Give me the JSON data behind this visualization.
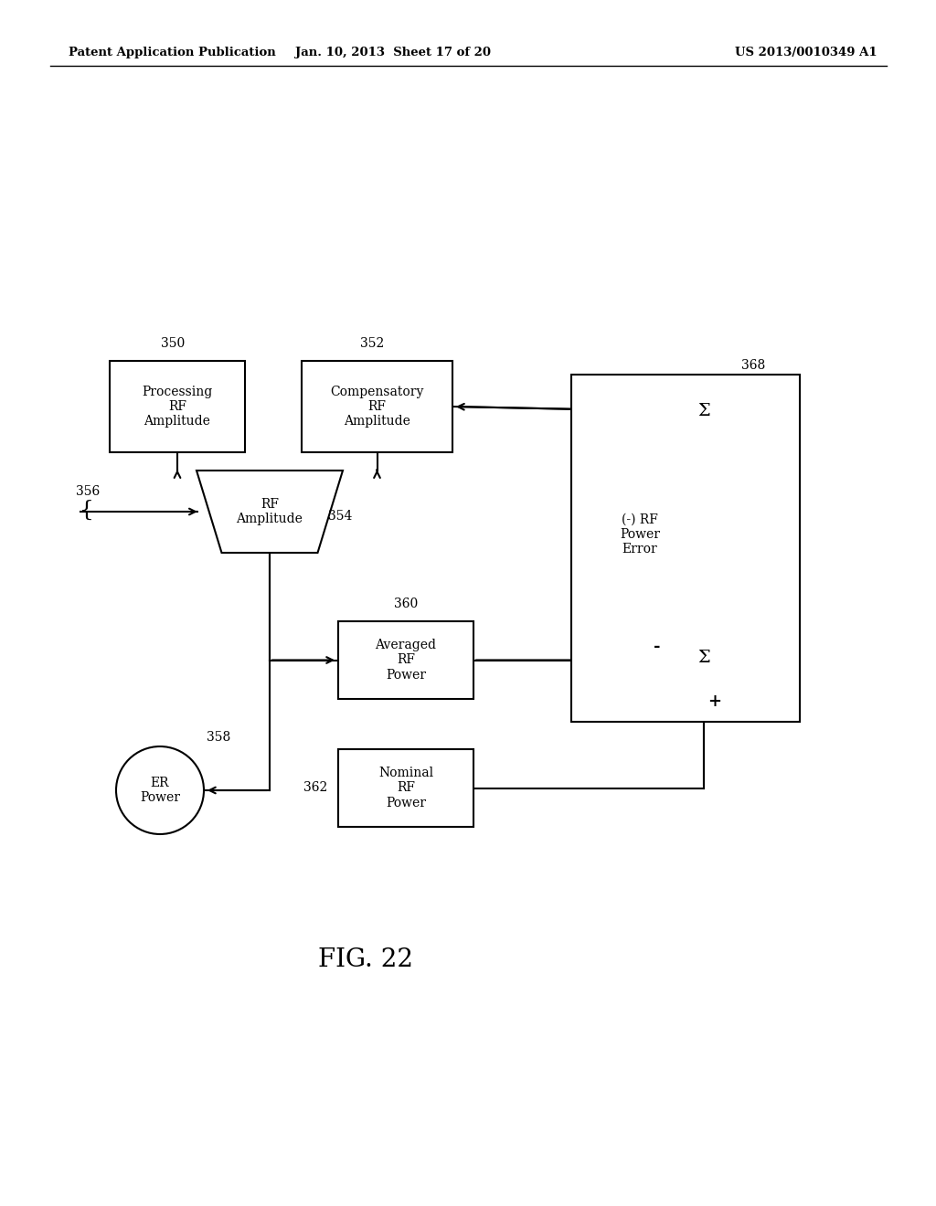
{
  "header_left": "Patent Application Publication",
  "header_center": "Jan. 10, 2013  Sheet 17 of 20",
  "header_right": "US 2013/0010349 A1",
  "background_color": "#ffffff",
  "fig_label": "FIG. 22"
}
